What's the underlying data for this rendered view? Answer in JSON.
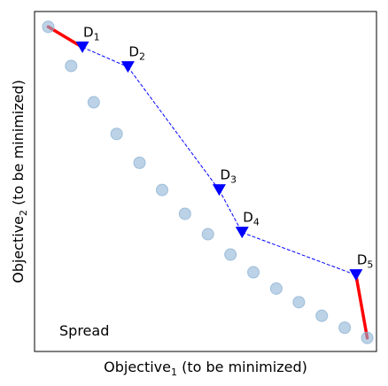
{
  "chart_data": {
    "type": "scatter",
    "xlabel": {
      "main": "Objective",
      "sub": "1",
      "suffix": " (to be minimized)"
    },
    "ylabel": {
      "main": "Objective",
      "sub": "2",
      "suffix": " (to be minimized)"
    },
    "xlim": [
      0,
      1
    ],
    "ylim": [
      0,
      1
    ],
    "annotation": "Spread",
    "ticks": "none",
    "grid": false,
    "colors": {
      "front": "#8fb4d6",
      "solutions": "#0000ff",
      "extent": "#ff0000",
      "connector": "#0000ff"
    },
    "front": {
      "x": [
        0.04,
        0.107,
        0.173,
        0.24,
        0.307,
        0.373,
        0.44,
        0.507,
        0.573,
        0.64,
        0.707,
        0.773,
        0.84,
        0.907,
        0.973
      ],
      "y": [
        0.955,
        0.84,
        0.733,
        0.64,
        0.555,
        0.475,
        0.405,
        0.345,
        0.285,
        0.233,
        0.185,
        0.145,
        0.105,
        0.07,
        0.04
      ]
    },
    "solutions": [
      {
        "name": "D",
        "sub": "1",
        "x": 0.14,
        "y": 0.895
      },
      {
        "name": "D",
        "sub": "2",
        "x": 0.273,
        "y": 0.837
      },
      {
        "name": "D",
        "sub": "3",
        "x": 0.54,
        "y": 0.475
      },
      {
        "name": "D",
        "sub": "4",
        "x": 0.607,
        "y": 0.35
      },
      {
        "name": "D",
        "sub": "5",
        "x": 0.94,
        "y": 0.225
      }
    ],
    "extent_lines": [
      {
        "from": [
          0.04,
          0.955
        ],
        "to": [
          0.14,
          0.895
        ]
      },
      {
        "from": [
          0.94,
          0.225
        ],
        "to": [
          0.973,
          0.04
        ]
      }
    ]
  }
}
